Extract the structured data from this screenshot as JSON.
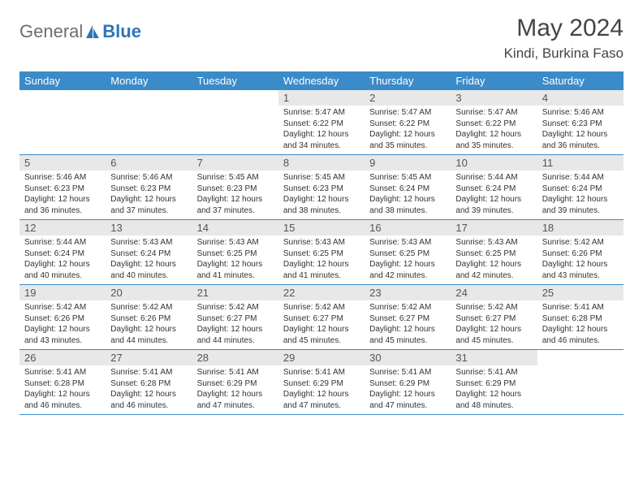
{
  "logo": {
    "text_gray": "General",
    "text_blue": "Blue"
  },
  "title": "May 2024",
  "location": "Kindi, Burkina Faso",
  "colors": {
    "header_bg": "#3b8bc8",
    "header_fg": "#ffffff",
    "daynum_bg": "#e8e8e8",
    "text": "#333333",
    "title": "#444444",
    "rule": "#3b8bc8"
  },
  "day_names": [
    "Sunday",
    "Monday",
    "Tuesday",
    "Wednesday",
    "Thursday",
    "Friday",
    "Saturday"
  ],
  "weeks": [
    [
      null,
      null,
      null,
      {
        "n": "1",
        "sr": "5:47 AM",
        "ss": "6:22 PM",
        "dl": "12 hours and 34 minutes."
      },
      {
        "n": "2",
        "sr": "5:47 AM",
        "ss": "6:22 PM",
        "dl": "12 hours and 35 minutes."
      },
      {
        "n": "3",
        "sr": "5:47 AM",
        "ss": "6:22 PM",
        "dl": "12 hours and 35 minutes."
      },
      {
        "n": "4",
        "sr": "5:46 AM",
        "ss": "6:23 PM",
        "dl": "12 hours and 36 minutes."
      }
    ],
    [
      {
        "n": "5",
        "sr": "5:46 AM",
        "ss": "6:23 PM",
        "dl": "12 hours and 36 minutes."
      },
      {
        "n": "6",
        "sr": "5:46 AM",
        "ss": "6:23 PM",
        "dl": "12 hours and 37 minutes."
      },
      {
        "n": "7",
        "sr": "5:45 AM",
        "ss": "6:23 PM",
        "dl": "12 hours and 37 minutes."
      },
      {
        "n": "8",
        "sr": "5:45 AM",
        "ss": "6:23 PM",
        "dl": "12 hours and 38 minutes."
      },
      {
        "n": "9",
        "sr": "5:45 AM",
        "ss": "6:24 PM",
        "dl": "12 hours and 38 minutes."
      },
      {
        "n": "10",
        "sr": "5:44 AM",
        "ss": "6:24 PM",
        "dl": "12 hours and 39 minutes."
      },
      {
        "n": "11",
        "sr": "5:44 AM",
        "ss": "6:24 PM",
        "dl": "12 hours and 39 minutes."
      }
    ],
    [
      {
        "n": "12",
        "sr": "5:44 AM",
        "ss": "6:24 PM",
        "dl": "12 hours and 40 minutes."
      },
      {
        "n": "13",
        "sr": "5:43 AM",
        "ss": "6:24 PM",
        "dl": "12 hours and 40 minutes."
      },
      {
        "n": "14",
        "sr": "5:43 AM",
        "ss": "6:25 PM",
        "dl": "12 hours and 41 minutes."
      },
      {
        "n": "15",
        "sr": "5:43 AM",
        "ss": "6:25 PM",
        "dl": "12 hours and 41 minutes."
      },
      {
        "n": "16",
        "sr": "5:43 AM",
        "ss": "6:25 PM",
        "dl": "12 hours and 42 minutes."
      },
      {
        "n": "17",
        "sr": "5:43 AM",
        "ss": "6:25 PM",
        "dl": "12 hours and 42 minutes."
      },
      {
        "n": "18",
        "sr": "5:42 AM",
        "ss": "6:26 PM",
        "dl": "12 hours and 43 minutes."
      }
    ],
    [
      {
        "n": "19",
        "sr": "5:42 AM",
        "ss": "6:26 PM",
        "dl": "12 hours and 43 minutes."
      },
      {
        "n": "20",
        "sr": "5:42 AM",
        "ss": "6:26 PM",
        "dl": "12 hours and 44 minutes."
      },
      {
        "n": "21",
        "sr": "5:42 AM",
        "ss": "6:27 PM",
        "dl": "12 hours and 44 minutes."
      },
      {
        "n": "22",
        "sr": "5:42 AM",
        "ss": "6:27 PM",
        "dl": "12 hours and 45 minutes."
      },
      {
        "n": "23",
        "sr": "5:42 AM",
        "ss": "6:27 PM",
        "dl": "12 hours and 45 minutes."
      },
      {
        "n": "24",
        "sr": "5:42 AM",
        "ss": "6:27 PM",
        "dl": "12 hours and 45 minutes."
      },
      {
        "n": "25",
        "sr": "5:41 AM",
        "ss": "6:28 PM",
        "dl": "12 hours and 46 minutes."
      }
    ],
    [
      {
        "n": "26",
        "sr": "5:41 AM",
        "ss": "6:28 PM",
        "dl": "12 hours and 46 minutes."
      },
      {
        "n": "27",
        "sr": "5:41 AM",
        "ss": "6:28 PM",
        "dl": "12 hours and 46 minutes."
      },
      {
        "n": "28",
        "sr": "5:41 AM",
        "ss": "6:29 PM",
        "dl": "12 hours and 47 minutes."
      },
      {
        "n": "29",
        "sr": "5:41 AM",
        "ss": "6:29 PM",
        "dl": "12 hours and 47 minutes."
      },
      {
        "n": "30",
        "sr": "5:41 AM",
        "ss": "6:29 PM",
        "dl": "12 hours and 47 minutes."
      },
      {
        "n": "31",
        "sr": "5:41 AM",
        "ss": "6:29 PM",
        "dl": "12 hours and 48 minutes."
      },
      null
    ]
  ],
  "labels": {
    "sunrise": "Sunrise:",
    "sunset": "Sunset:",
    "daylight": "Daylight:"
  }
}
